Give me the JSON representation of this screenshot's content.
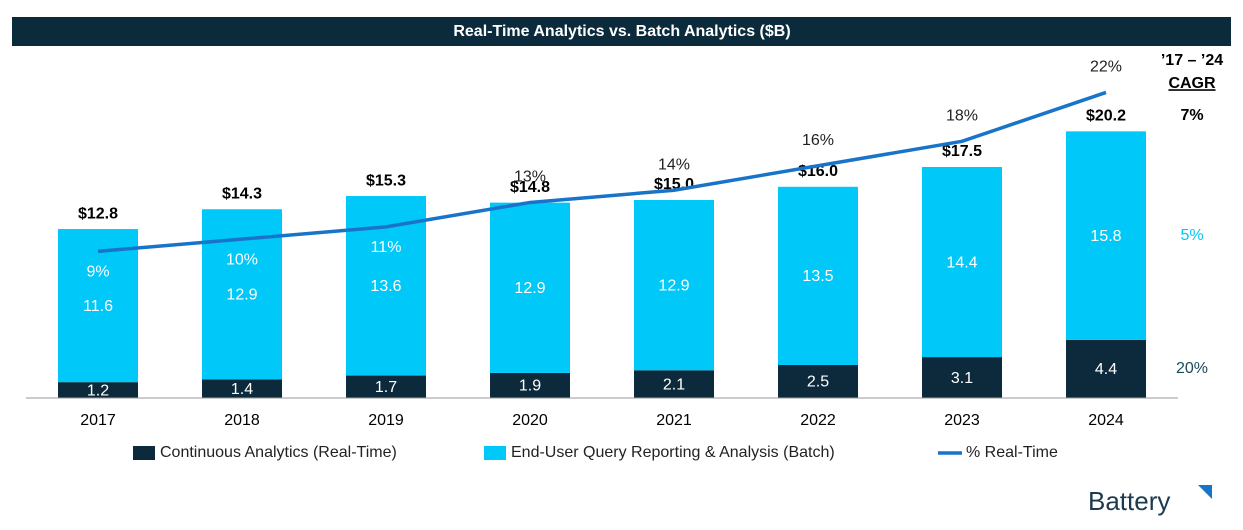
{
  "chart_data": {
    "type": "stacked_bar_line",
    "title": "Real-Time Analytics vs. Batch Analytics ($B)",
    "categories": [
      "2017",
      "2018",
      "2019",
      "2020",
      "2021",
      "2022",
      "2023",
      "2024"
    ],
    "series": [
      {
        "name": "Continuous Analytics (Real-Time)",
        "color": "#0c2a3b",
        "values": [
          1.2,
          1.4,
          1.7,
          1.9,
          2.1,
          2.5,
          3.1,
          4.4
        ]
      },
      {
        "name": "End-User Query Reporting & Analysis (Batch)",
        "color": "#00c8f8",
        "values": [
          11.6,
          12.9,
          13.6,
          12.9,
          12.9,
          13.5,
          14.4,
          15.8
        ]
      },
      {
        "name": "% Real-Time",
        "color": "#1874c9",
        "axis": "y2",
        "values": [
          9,
          10,
          11,
          13,
          14,
          16,
          18,
          22
        ],
        "value_labels": [
          "9%",
          "10%",
          "11%",
          "13%",
          "14%",
          "16%",
          "18%",
          "22%"
        ]
      }
    ],
    "totals": {
      "values": [
        12.8,
        14.3,
        15.3,
        14.8,
        15.0,
        16.0,
        17.5,
        20.2
      ],
      "value_labels": [
        "$12.8",
        "$14.3",
        "$15.3",
        "$14.8",
        "$15.0",
        "$16.0",
        "$17.5",
        "$20.2"
      ]
    },
    "ylim": [
      0,
      25
    ],
    "y2lim": [
      -3,
      24
    ],
    "cagr": {
      "title": "’17 – ’24",
      "subtitle": "CAGR",
      "total": {
        "value": 7,
        "label": "7%"
      },
      "batch": {
        "value": 5,
        "label": "5%"
      },
      "real_time": {
        "value": 20,
        "label": "20%"
      }
    },
    "logo": "Battery"
  }
}
